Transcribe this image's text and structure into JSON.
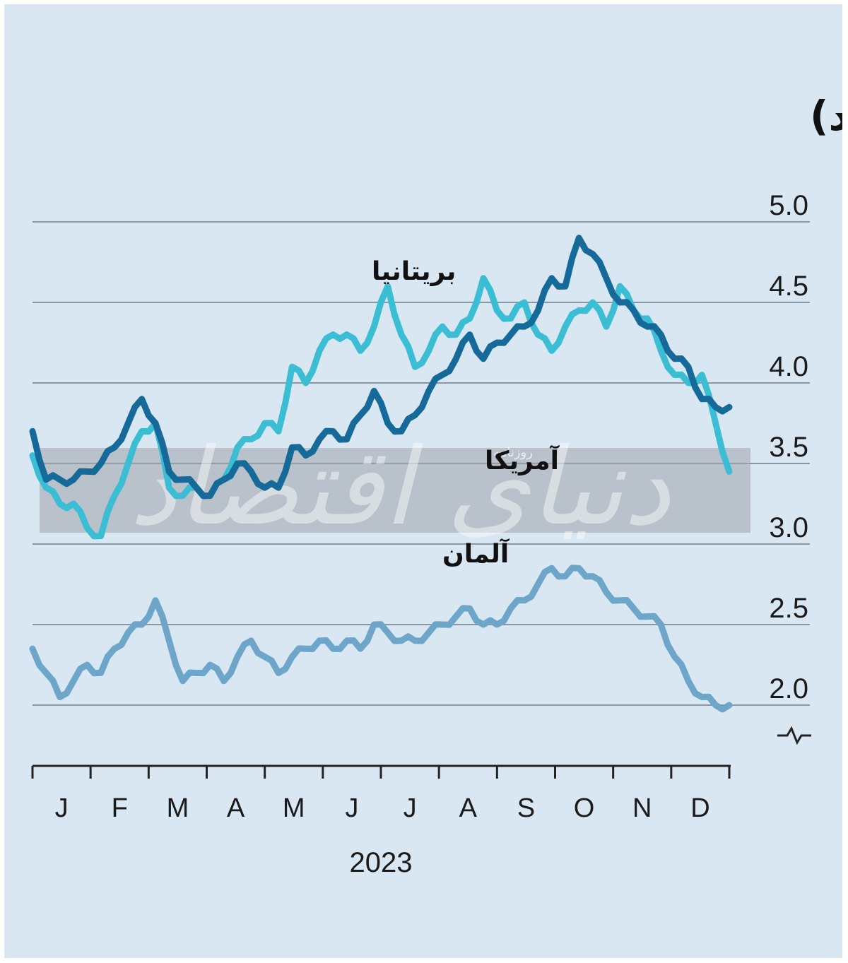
{
  "chart_data": {
    "type": "line",
    "title": "بازده اوراق بدهی دولتی ده ساله (درصد)",
    "xlabel": "2023",
    "ylabel": "",
    "ylim": [
      2.0,
      5.0
    ],
    "y_ticks": [
      "5.0",
      "4.5",
      "4.0",
      "3.5",
      "3.0",
      "2.5",
      "2.0"
    ],
    "x_ticks": [
      "J",
      "F",
      "M",
      "A",
      "M",
      "J",
      "J",
      "A",
      "S",
      "O",
      "N",
      "D"
    ],
    "grid": true,
    "axis_break": "~",
    "watermark": [
      "دنیای اقتصاد",
      "روزنامه"
    ],
    "x": [
      1,
      2,
      3,
      4,
      5,
      6,
      7,
      8,
      9,
      10,
      11,
      12,
      13,
      14,
      15,
      16,
      17,
      18,
      19,
      20,
      21,
      22,
      23,
      24,
      25,
      26,
      27,
      28,
      29,
      30,
      31,
      32,
      33,
      34,
      35,
      36,
      37,
      38,
      39,
      40,
      41,
      42,
      43,
      44,
      45,
      46,
      47,
      48,
      49,
      50,
      51,
      52
    ],
    "series": [
      {
        "name": "بریتانیا",
        "color": "#3bbdd3",
        "values": [
          3.55,
          3.35,
          3.25,
          3.25,
          3.1,
          3.05,
          3.3,
          3.5,
          3.7,
          3.75,
          3.35,
          3.3,
          3.35,
          3.3,
          3.4,
          3.6,
          3.65,
          3.75,
          3.7,
          4.1,
          4.0,
          4.2,
          4.3,
          4.3,
          4.2,
          4.35,
          4.6,
          4.3,
          4.1,
          4.2,
          4.35,
          4.3,
          4.4,
          4.65,
          4.45,
          4.4,
          4.5,
          4.3,
          4.2,
          4.35,
          4.45,
          4.5,
          4.35,
          4.6,
          4.45,
          4.4,
          4.2,
          4.05,
          4.0,
          4.05,
          3.75,
          3.45
        ]
      },
      {
        "name": "آمریکا",
        "color": "#166a9a",
        "values": [
          3.7,
          3.4,
          3.4,
          3.4,
          3.45,
          3.5,
          3.6,
          3.75,
          3.9,
          3.75,
          3.45,
          3.4,
          3.35,
          3.3,
          3.4,
          3.5,
          3.45,
          3.35,
          3.35,
          3.6,
          3.55,
          3.65,
          3.7,
          3.65,
          3.8,
          3.95,
          3.75,
          3.7,
          3.8,
          3.95,
          4.05,
          4.15,
          4.3,
          4.15,
          4.25,
          4.3,
          4.35,
          4.45,
          4.65,
          4.6,
          4.9,
          4.8,
          4.65,
          4.5,
          4.45,
          4.35,
          4.3,
          4.15,
          4.1,
          3.9,
          3.85,
          3.85
        ]
      },
      {
        "name": "آلمان",
        "color": "#6ea6c9",
        "values": [
          2.35,
          2.2,
          2.05,
          2.15,
          2.25,
          2.2,
          2.35,
          2.45,
          2.5,
          2.65,
          2.4,
          2.15,
          2.2,
          2.25,
          2.15,
          2.3,
          2.4,
          2.3,
          2.2,
          2.3,
          2.35,
          2.4,
          2.35,
          2.4,
          2.35,
          2.5,
          2.45,
          2.4,
          2.4,
          2.45,
          2.5,
          2.55,
          2.6,
          2.5,
          2.5,
          2.6,
          2.65,
          2.75,
          2.85,
          2.8,
          2.85,
          2.8,
          2.7,
          2.65,
          2.6,
          2.55,
          2.5,
          2.3,
          2.15,
          2.05,
          2.0,
          2.0
        ]
      }
    ]
  }
}
